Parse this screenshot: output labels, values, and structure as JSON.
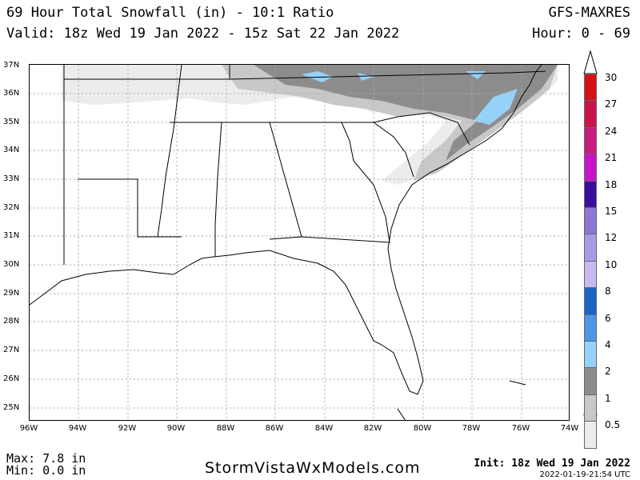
{
  "header": {
    "title": "69 Hour Total Snowfall (in) - 10:1 Ratio",
    "valid": "Valid: 18z Wed 19 Jan 2022 - 15z Sat 22 Jan 2022",
    "model": "GFS-MAXRES",
    "hour": "Hour: 0 - 69"
  },
  "axes": {
    "lat_labels": [
      "37N",
      "36N",
      "35N",
      "34N",
      "33N",
      "32N",
      "31N",
      "30N",
      "29N",
      "28N",
      "27N",
      "26N",
      "25N"
    ],
    "lon_labels": [
      "96W",
      "94W",
      "92W",
      "90W",
      "88W",
      "86W",
      "84W",
      "82W",
      "80W",
      "78W",
      "76W",
      "74W"
    ]
  },
  "legend": {
    "labels": [
      "30",
      "27",
      "24",
      "21",
      "18",
      "15",
      "12",
      "10",
      "8",
      "6",
      "4",
      "2",
      "1",
      "0.5"
    ],
    "colors": [
      "#d21414",
      "#c8144b",
      "#c81c82",
      "#c814c8",
      "#3a0f9c",
      "#8c78d2",
      "#aa9ae6",
      "#c8b9f0",
      "#1e64c8",
      "#5096e6",
      "#96d2fa",
      "#8c8c8c",
      "#c8c8c8",
      "#ececec"
    ]
  },
  "footer": {
    "max": "Max: 7.8 in",
    "min": "Min: 0.0 in",
    "site": "StormVistaWxModels.com",
    "init": "Init: 18z Wed 19 Jan 2022",
    "stamp": "2022-01-19-21:54 UTC"
  }
}
